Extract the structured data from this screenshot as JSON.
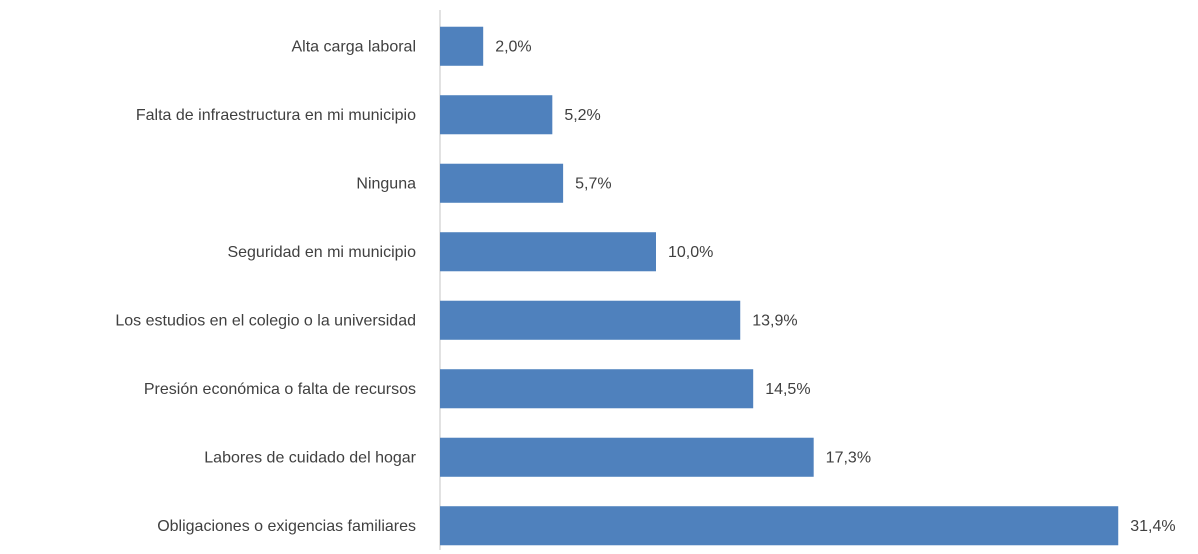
{
  "chart_data": {
    "type": "barh",
    "categories": [
      "Alta carga laboral",
      "Falta de infraestructura en mi municipio",
      "Ninguna",
      "Seguridad en mi municipio",
      "Los estudios en el colegio o la universidad",
      "Presión económica o falta de recursos",
      "Labores de cuidado del hogar",
      "Obligaciones o exigencias familiares"
    ],
    "values": [
      2.0,
      5.2,
      5.7,
      10.0,
      13.9,
      14.5,
      17.3,
      31.4
    ],
    "value_labels": [
      "2,0%",
      "5,2%",
      "5,7%",
      "10,0%",
      "13,9%",
      "14,5%",
      "17,3%",
      "31,4%"
    ],
    "color": "#4f81bd",
    "xlim": [
      0,
      35
    ]
  }
}
